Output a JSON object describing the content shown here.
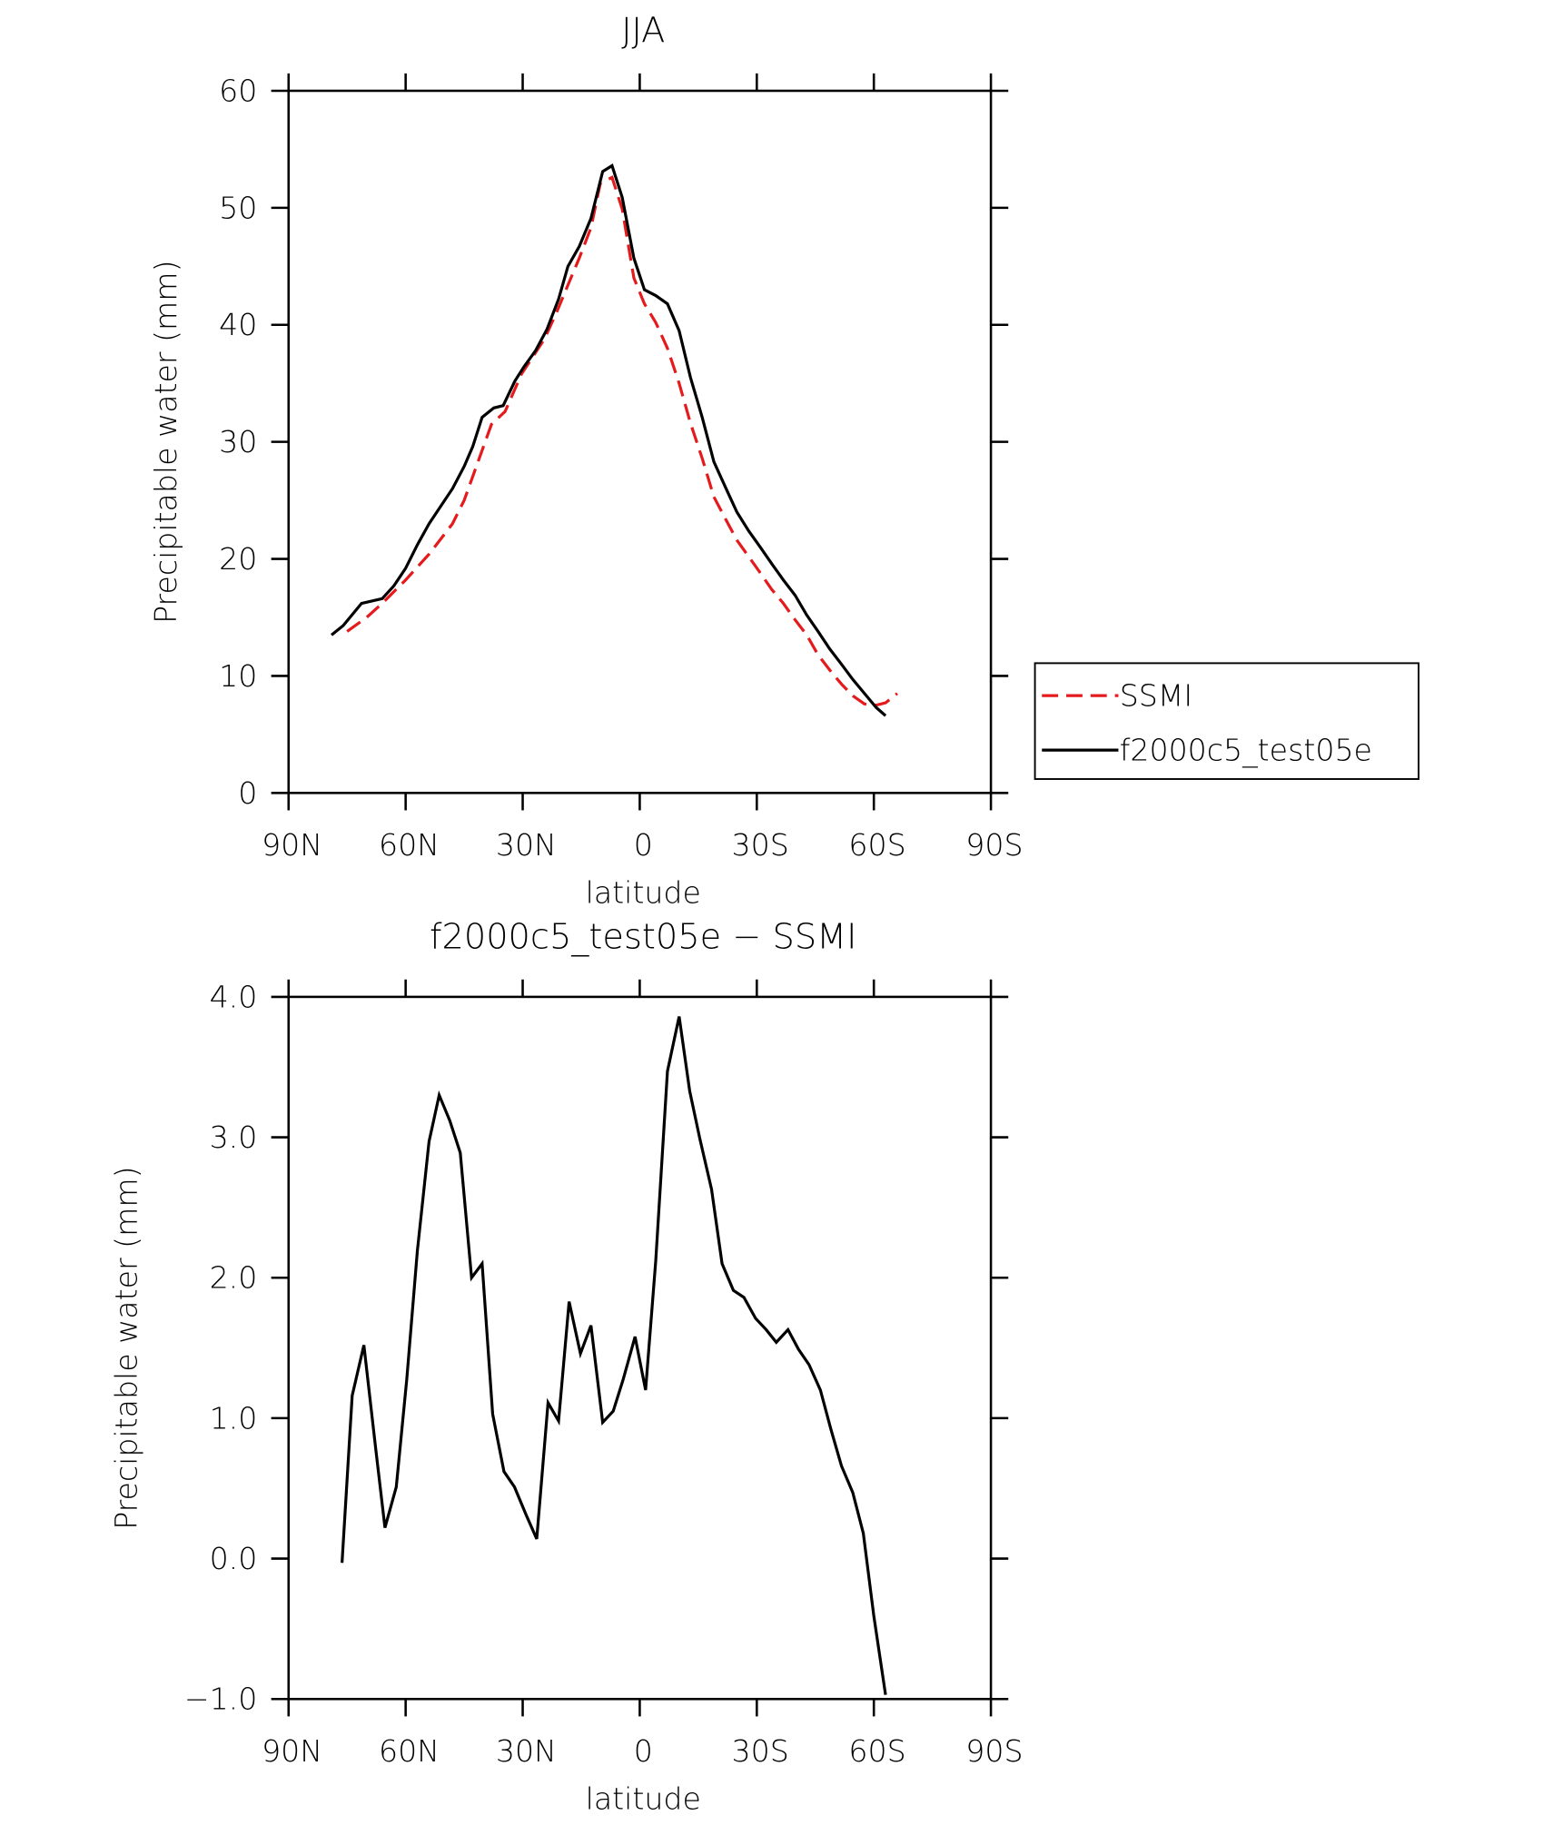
{
  "chart_data": [
    {
      "type": "line",
      "title": "JJA",
      "xlabel": "latitude",
      "ylabel": "Precipitable water (mm)",
      "xlim": [
        90,
        -90
      ],
      "xticks": [
        {
          "value": 90,
          "label": "90N"
        },
        {
          "value": 60,
          "label": "60N"
        },
        {
          "value": 30,
          "label": "30N"
        },
        0,
        {
          "value": -30,
          "label": "30S"
        },
        {
          "value": -60,
          "label": "60S"
        },
        {
          "value": -90,
          "label": "90S"
        }
      ],
      "ylim": [
        0,
        60
      ],
      "yticks": [
        0,
        10,
        20,
        30,
        40,
        50,
        60
      ],
      "legend": "right",
      "series": [
        {
          "name": "SSMI",
          "color": "#e41a1c",
          "dash": "dashed",
          "x": [
            75,
            70,
            66,
            60,
            54,
            48,
            45,
            42.2,
            38,
            34.5,
            30.3,
            24.4,
            21.4,
            18.4,
            15.5,
            12.5,
            10.1,
            7.1,
            4.5,
            1.5,
            -1.2,
            -4.1,
            -7.1,
            -10.1,
            -13,
            -16,
            -19,
            -22,
            -24.9,
            -27.9,
            -30.9,
            -33.8,
            -36.8,
            -39.8,
            -42.8,
            -45.7,
            -48.7,
            -51.7,
            -54.6,
            -57.6,
            -60.6,
            -63,
            -66
          ],
          "values": [
            13.8,
            15,
            16.2,
            18.2,
            20.4,
            23,
            25,
            27.6,
            31.5,
            32.6,
            35.8,
            38.8,
            41,
            43.4,
            45.7,
            48.3,
            52.1,
            52.6,
            49.9,
            44,
            41.8,
            40.2,
            38,
            35,
            31.6,
            28.6,
            25.3,
            23.4,
            21.6,
            20.2,
            18.8,
            17.4,
            16.2,
            14.8,
            13.5,
            11.8,
            10.5,
            9.3,
            8.3,
            7.6,
            7.5,
            7.7,
            8.5
          ]
        },
        {
          "name": "f2000c5_test05e",
          "color": "#000000",
          "dash": "solid",
          "x": [
            79,
            76,
            71.3,
            66,
            63,
            60,
            57,
            54,
            51,
            48,
            45,
            42.8,
            40.4,
            37.4,
            35,
            32,
            29.7,
            26.7,
            23.8,
            20.8,
            18.4,
            15.5,
            12.5,
            9.5,
            7.1,
            4.5,
            1.5,
            -1.2,
            -4.1,
            -7.1,
            -10.1,
            -13,
            -16,
            -19,
            -22,
            -24.9,
            -27.9,
            -30.9,
            -33.8,
            -36.8,
            -39.8,
            -42.8,
            -45.7,
            -48.7,
            -51.7,
            -54.6,
            -57.6,
            -60.6,
            -63
          ],
          "values": [
            13.5,
            14.3,
            16.2,
            16.6,
            17.7,
            19.2,
            21.2,
            23,
            24.5,
            26,
            27.9,
            29.6,
            32.1,
            32.9,
            33.1,
            35.2,
            36.4,
            37.8,
            39.6,
            42.2,
            45,
            46.7,
            49.1,
            53.1,
            53.6,
            50.9,
            45.7,
            43,
            42.5,
            41.8,
            39.5,
            35.5,
            32.1,
            28.3,
            26.1,
            24,
            22.4,
            21,
            19.6,
            18.2,
            16.9,
            15.2,
            13.8,
            12.3,
            11,
            9.7,
            8.5,
            7.3,
            6.6
          ]
        }
      ]
    },
    {
      "type": "line",
      "title": "f2000c5_test05e − SSMI",
      "xlabel": "latitude",
      "ylabel": "Precipitable water (mm)",
      "xlim": [
        90,
        -90
      ],
      "xticks": [
        {
          "value": 90,
          "label": "90N"
        },
        {
          "value": 60,
          "label": "60N"
        },
        {
          "value": 30,
          "label": "30N"
        },
        0,
        {
          "value": -30,
          "label": "30S"
        },
        {
          "value": -60,
          "label": "60S"
        },
        {
          "value": -90,
          "label": "90S"
        }
      ],
      "ylim": [
        -1,
        4
      ],
      "yticks": [
        {
          "value": -1,
          "label": "−1.0"
        },
        {
          "value": 0,
          "label": "0.0"
        },
        {
          "value": 1,
          "label": "1.0"
        },
        {
          "value": 2,
          "label": "2.0"
        },
        {
          "value": 3,
          "label": "3.0"
        },
        {
          "value": 4,
          "label": "4.0"
        }
      ],
      "series": [
        {
          "color": "#000000",
          "dash": "solid",
          "x": [
            76.3,
            73.7,
            70.7,
            67.7,
            65.3,
            62.4,
            59.7,
            57,
            54,
            51.4,
            48.7,
            46,
            43.1,
            40.4,
            37.7,
            34.8,
            32.1,
            29.1,
            26.4,
            23.5,
            20.8,
            18.1,
            15.2,
            12.5,
            9.5,
            6.8,
            4.2,
            1.2,
            -1.5,
            -4.1,
            -7.1,
            -10.1,
            -12.8,
            -15.4,
            -18.4,
            -21.1,
            -24,
            -26.7,
            -29.7,
            -32.4,
            -35,
            -38,
            -40.7,
            -43.4,
            -46.3,
            -49,
            -51.7,
            -54.6,
            -57.3,
            -60,
            -63
          ],
          "values": [
            -0.03,
            1.16,
            1.52,
            0.79,
            0.22,
            0.51,
            1.28,
            2.19,
            2.97,
            3.3,
            3.12,
            2.89,
            2.0,
            2.1,
            1.03,
            0.62,
            0.51,
            0.31,
            0.14,
            1.11,
            0.98,
            1.83,
            1.46,
            1.66,
            0.97,
            1.05,
            1.28,
            1.58,
            1.2,
            2.12,
            3.47,
            3.86,
            3.33,
            2.99,
            2.63,
            2.1,
            1.91,
            1.86,
            1.71,
            1.63,
            1.54,
            1.63,
            1.49,
            1.38,
            1.2,
            0.92,
            0.66,
            0.47,
            0.18,
            -0.41,
            -0.97
          ]
        }
      ]
    }
  ]
}
